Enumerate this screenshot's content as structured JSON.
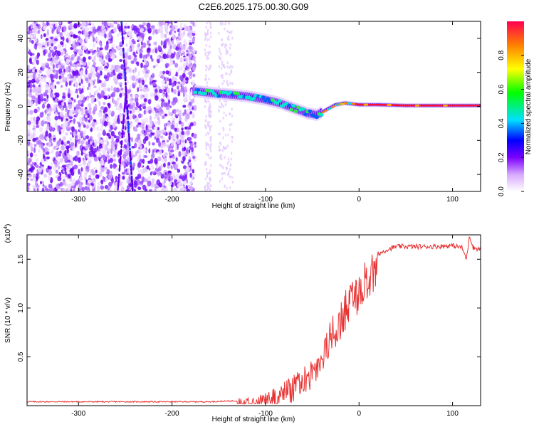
{
  "title": "C2E6.2025.175.00.30.G09",
  "colors": {
    "snr_line": "#e83030",
    "axis": "#000000"
  },
  "chart_data": [
    {
      "type": "heatmap",
      "xlabel": "Height of straight line (km)",
      "ylabel": "Frequency (Hz)",
      "xlim": [
        -355,
        130
      ],
      "ylim": [
        -50,
        50
      ],
      "x_ticks": [
        -300,
        -200,
        -100,
        0,
        100
      ],
      "y_ticks": [
        -40,
        -20,
        0,
        20,
        40
      ],
      "colorbar": {
        "label": "Normalized spectral amplitude",
        "range": [
          0,
          1
        ],
        "ticks": [
          "0.0",
          "0.2",
          "0.4",
          "0.6",
          "0.8"
        ],
        "tick_values": [
          0.0,
          0.2,
          0.4,
          0.6,
          0.8
        ]
      },
      "signal_track": {
        "x": [
          -175,
          -160,
          -140,
          -120,
          -100,
          -85,
          -70,
          -55,
          -45,
          -35,
          -25,
          -15,
          0,
          20,
          50,
          80,
          110,
          130
        ],
        "freq": [
          9,
          8,
          7,
          6,
          4,
          2,
          -1,
          -4,
          -5,
          -2,
          1,
          2,
          1,
          1,
          0.5,
          0.5,
          0.5,
          0.5
        ]
      }
    },
    {
      "type": "line",
      "xlabel": "Height of straight line (km)",
      "ylabel": "SNR (10 * v/v)",
      "y_multiplier": "(x10",
      "y_multiplier_exp": "4",
      "y_multiplier_close": ")",
      "xlim": [
        -355,
        130
      ],
      "ylim": [
        0,
        1.75
      ],
      "x_ticks": [
        -300,
        -200,
        -100,
        0,
        100
      ],
      "y_ticks": [
        "0.5",
        "1.0",
        "1.5"
      ],
      "y_tick_values": [
        0.5,
        1.0,
        1.5
      ],
      "series": [
        {
          "x": [
            -355,
            -300,
            -250,
            -200,
            -160,
            -130,
            -110,
            -100,
            -90,
            -80,
            -70,
            -60,
            -50,
            -40,
            -30,
            -20,
            -10,
            0,
            10,
            20,
            30,
            40,
            60,
            80,
            100,
            110,
            115,
            118,
            122,
            130
          ],
          "y": [
            0.04,
            0.04,
            0.04,
            0.04,
            0.04,
            0.05,
            0.07,
            0.1,
            0.14,
            0.2,
            0.26,
            0.35,
            0.45,
            0.6,
            0.85,
            1.0,
            1.2,
            1.3,
            1.45,
            1.55,
            1.6,
            1.63,
            1.63,
            1.63,
            1.64,
            1.62,
            1.5,
            1.75,
            1.62,
            1.6
          ]
        }
      ]
    }
  ]
}
